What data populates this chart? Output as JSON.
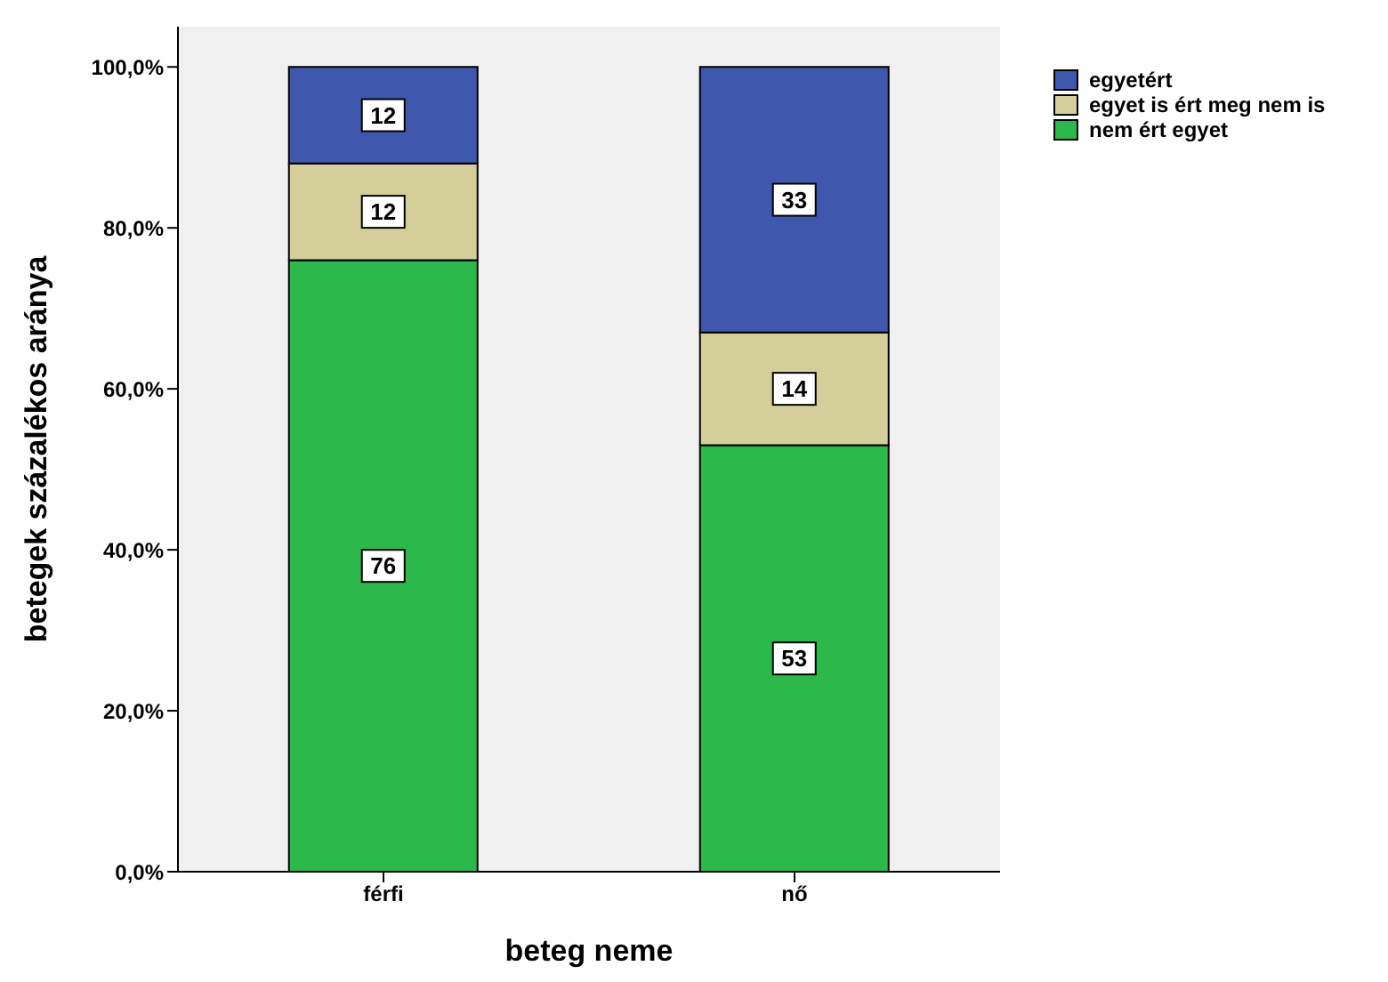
{
  "chart_data": {
    "type": "bar",
    "stacked": true,
    "xlabel": "beteg neme",
    "ylabel": "betegek százalékos aránya",
    "categories": [
      "férfi",
      "nő"
    ],
    "series": [
      {
        "name": "nem ért egyet",
        "color": "#2db84b",
        "values": [
          76,
          53
        ]
      },
      {
        "name": "egyet is ért meg nem is",
        "color": "#d4cf9a",
        "values": [
          12,
          14
        ]
      },
      {
        "name": "egyetért",
        "color": "#3f58ad",
        "values": [
          12,
          33
        ]
      }
    ],
    "ylim": [
      0,
      105
    ],
    "yticks": [
      {
        "value": 0,
        "label": "0,0%"
      },
      {
        "value": 20,
        "label": "20,0%"
      },
      {
        "value": 40,
        "label": "40,0%"
      },
      {
        "value": 60,
        "label": "60,0%"
      },
      {
        "value": 80,
        "label": "80,0%"
      },
      {
        "value": 100,
        "label": "100,0%"
      }
    ],
    "data_labels": true,
    "legend": "top right",
    "grid": false
  }
}
